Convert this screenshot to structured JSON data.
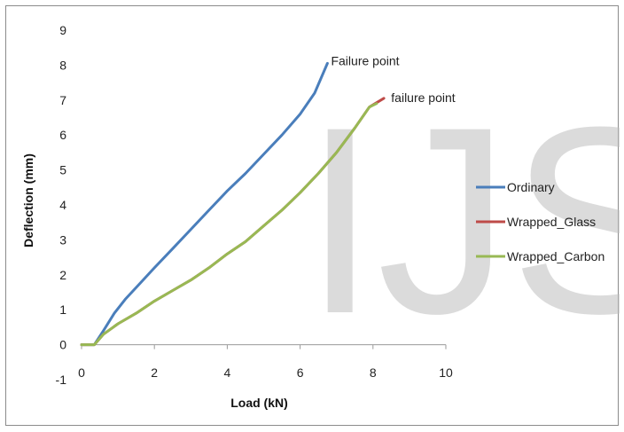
{
  "chart_data": {
    "type": "line",
    "title": "",
    "xlabel": "Load (kN)",
    "ylabel": "Deflection (mm)",
    "xlim": [
      0,
      10
    ],
    "ylim": [
      -1,
      9
    ],
    "xticks": [
      "0",
      "2",
      "4",
      "6",
      "8",
      "10"
    ],
    "yticks": [
      "-1",
      "0",
      "1",
      "2",
      "3",
      "4",
      "5",
      "6",
      "7",
      "8",
      "9"
    ],
    "grid": false,
    "legend_position": "right",
    "series": [
      {
        "name": "Ordinary",
        "color": "#4a7ebb",
        "x": [
          0,
          0.35,
          0.6,
          0.9,
          1.2,
          1.6,
          2.0,
          2.5,
          3.0,
          3.5,
          4.0,
          4.5,
          5.0,
          5.5,
          6.0,
          6.4,
          6.75
        ],
        "y": [
          0,
          0,
          0.4,
          0.9,
          1.3,
          1.75,
          2.2,
          2.75,
          3.3,
          3.85,
          4.4,
          4.9,
          5.45,
          6.0,
          6.6,
          7.2,
          8.05
        ]
      },
      {
        "name": "Wrapped_Glass",
        "color": "#be4b48",
        "x": [
          0,
          0.35,
          0.6,
          1.0,
          1.5,
          2.0,
          2.5,
          3.0,
          3.5,
          4.0,
          4.5,
          5.0,
          5.5,
          6.0,
          6.5,
          7.0,
          7.5,
          7.9,
          8.3
        ],
        "y": [
          0,
          0,
          0.3,
          0.6,
          0.9,
          1.25,
          1.55,
          1.85,
          2.2,
          2.6,
          2.95,
          3.4,
          3.85,
          4.35,
          4.9,
          5.5,
          6.2,
          6.8,
          7.05
        ]
      },
      {
        "name": "Wrapped_Carbon",
        "color": "#98b954",
        "x": [
          0,
          0.35,
          0.6,
          1.0,
          1.5,
          2.0,
          2.5,
          3.0,
          3.5,
          4.0,
          4.5,
          5.0,
          5.5,
          6.0,
          6.5,
          7.0,
          7.5,
          7.9,
          8.1
        ],
        "y": [
          0,
          0,
          0.3,
          0.6,
          0.9,
          1.25,
          1.55,
          1.85,
          2.2,
          2.6,
          2.95,
          3.4,
          3.85,
          4.35,
          4.9,
          5.5,
          6.2,
          6.8,
          6.9
        ]
      }
    ],
    "annotations": [
      {
        "text": "Failure point",
        "x": 6.8,
        "y": 8.1
      },
      {
        "text": "failure point",
        "x": 8.45,
        "y": 7.05
      }
    ],
    "watermark": "IJS"
  }
}
